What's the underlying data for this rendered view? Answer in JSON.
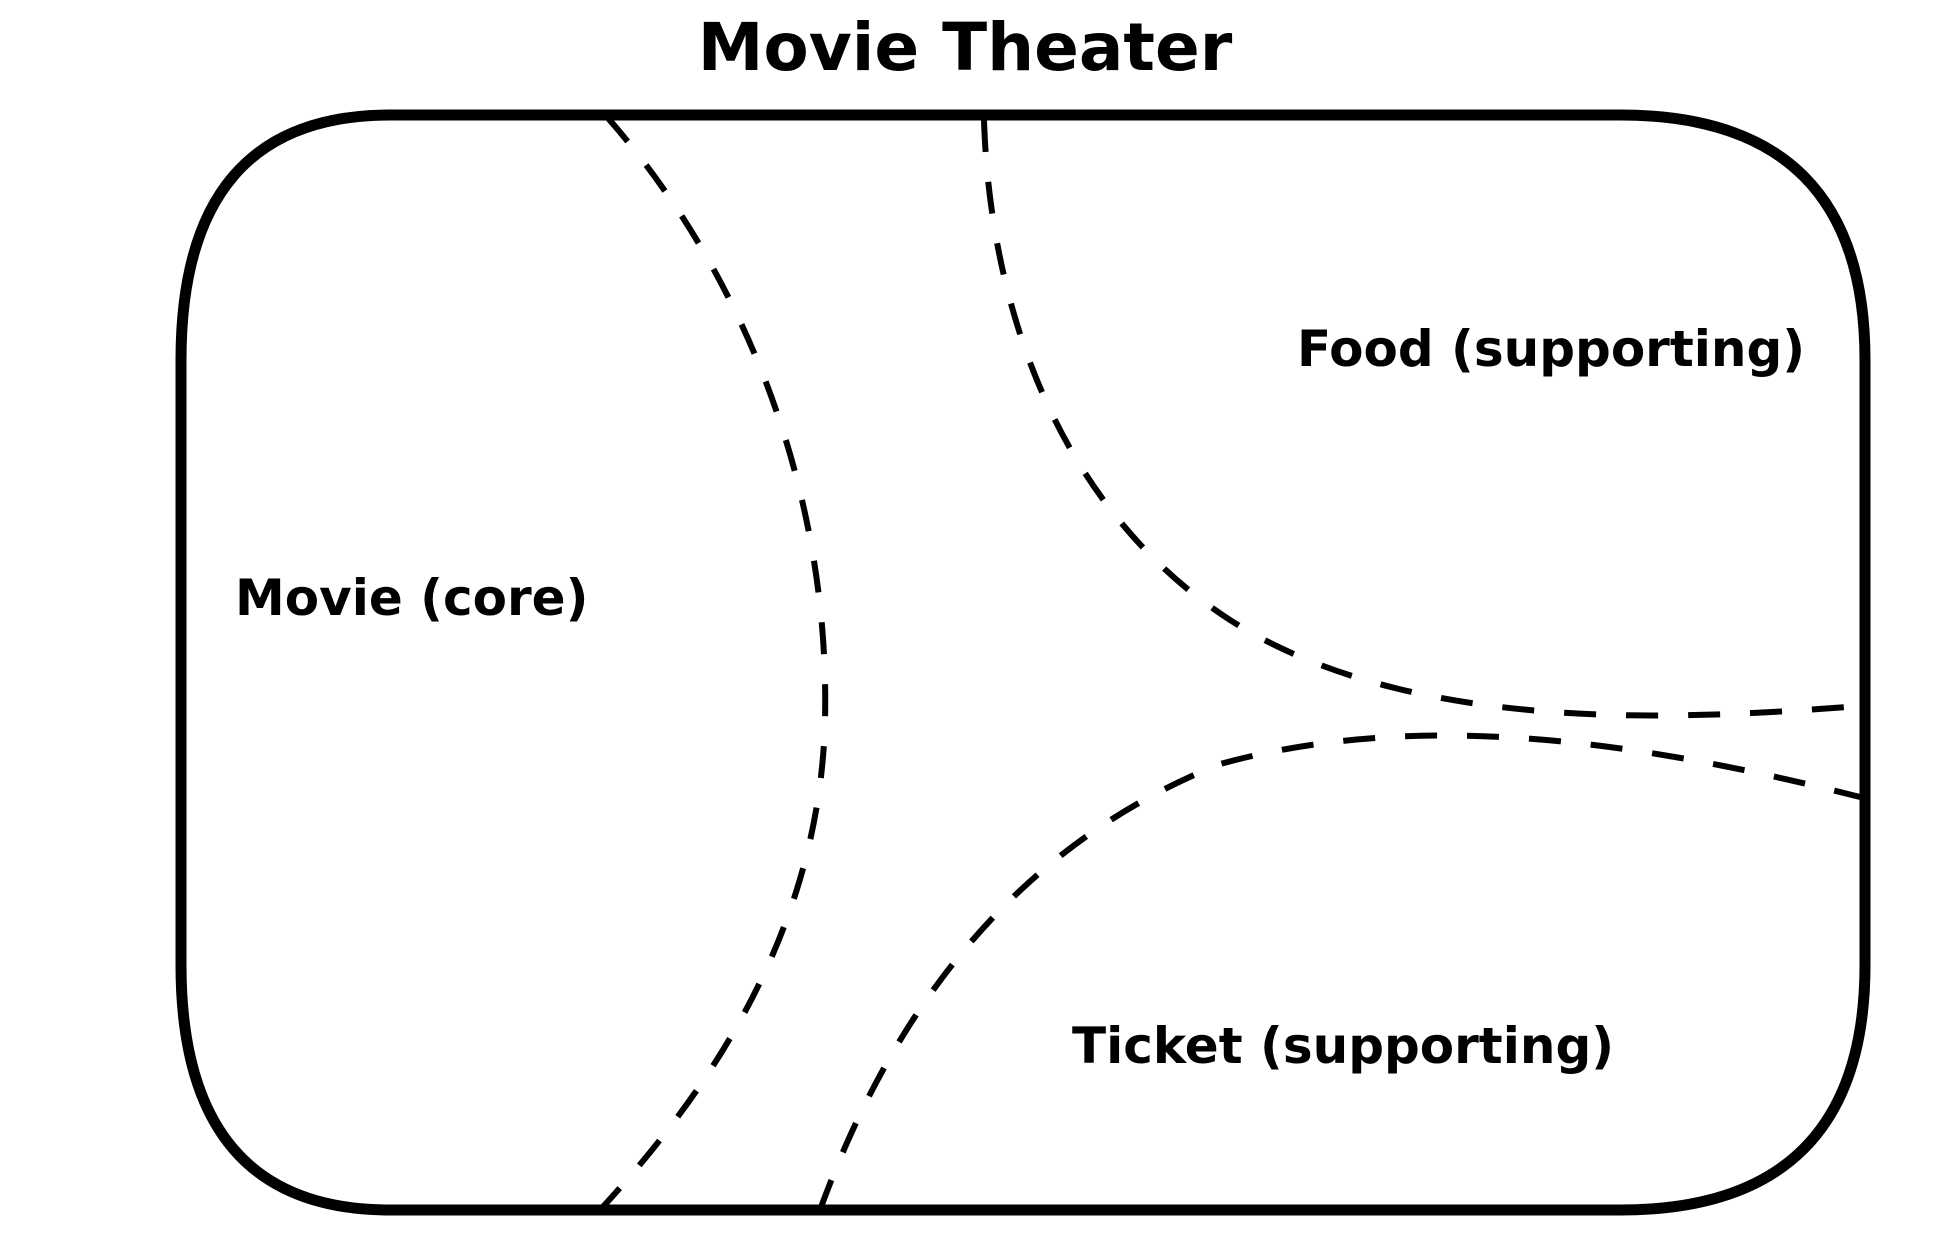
{
  "diagram": {
    "title": "Movie Theater",
    "regions": {
      "core": {
        "label": "Movie (core)"
      },
      "food": {
        "label": "Food (supporting)"
      },
      "ticket": {
        "label": "Ticket (supporting)"
      }
    }
  }
}
